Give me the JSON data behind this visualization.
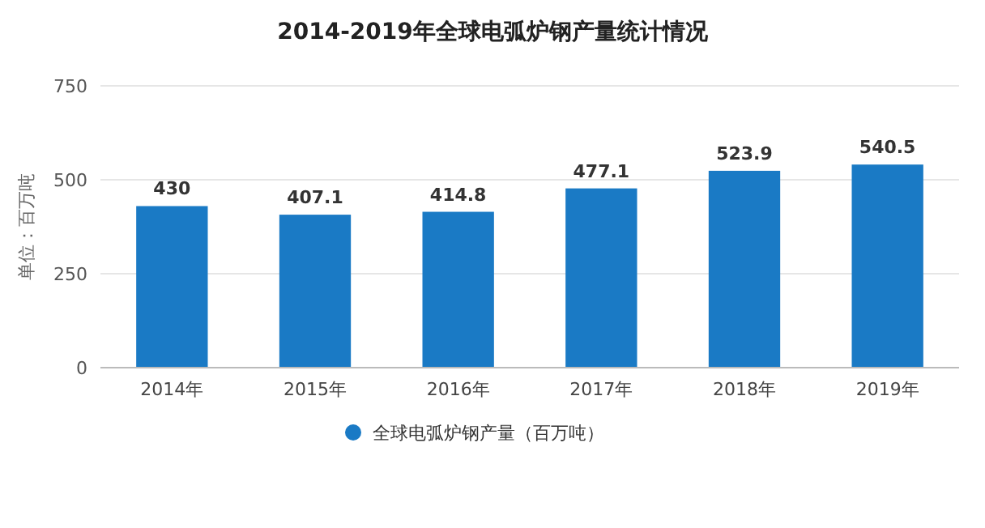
{
  "chart_data": {
    "type": "bar",
    "title": "2014-2019年全球电弧炉钢产量统计情况",
    "ylabel": "单位：百万吨",
    "categories": [
      "2014年",
      "2015年",
      "2016年",
      "2017年",
      "2018年",
      "2019年"
    ],
    "series": [
      {
        "name": "全球电弧炉钢产量（百万吨）",
        "color": "#1a7ac5",
        "values": [
          430,
          407.1,
          414.8,
          477.1,
          523.9,
          540.5
        ]
      }
    ],
    "ylim": [
      0,
      750
    ],
    "yticks": [
      0,
      250,
      500,
      750
    ],
    "grid": "y",
    "legend": "bottom",
    "data_labels": true
  }
}
